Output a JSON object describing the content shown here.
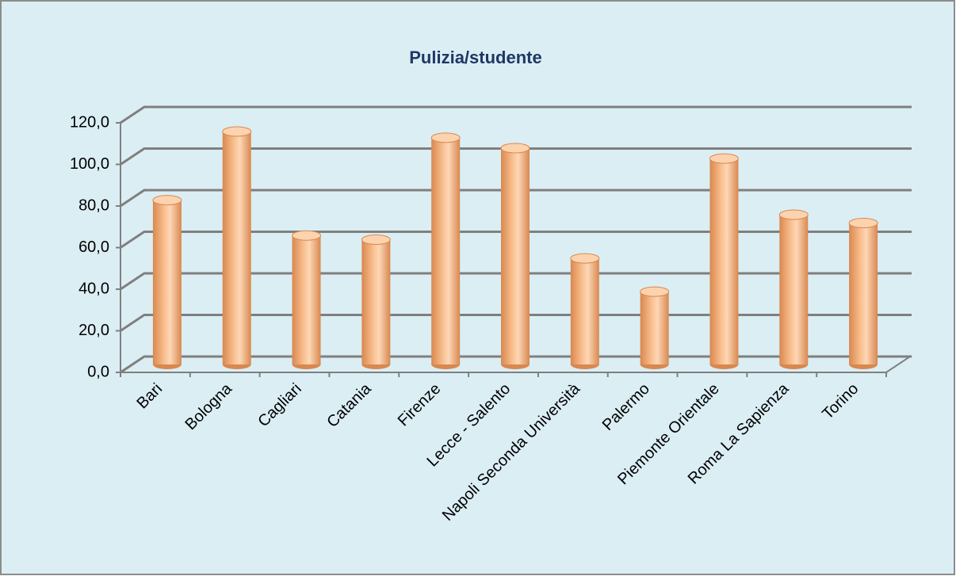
{
  "chart_data": {
    "type": "bar",
    "title": "Pulizia/studente",
    "categories": [
      "Bari",
      "Bologna",
      "Cagliari",
      "Catania",
      "Firenze",
      "Lecce - Salento",
      "Napoli Seconda Università",
      "Palermo",
      "Piemonte Orientale",
      "Roma La Sapienza",
      "Torino"
    ],
    "values": [
      79,
      112,
      62,
      60,
      109,
      104,
      51,
      35,
      99,
      72,
      68
    ],
    "color": "#f9bf8f",
    "ylim": [
      0,
      120
    ],
    "yticks": [
      {
        "value": 0,
        "label": "0,0"
      },
      {
        "value": 20,
        "label": "20,0"
      },
      {
        "value": 40,
        "label": "40,0"
      },
      {
        "value": 60,
        "label": "60,0"
      },
      {
        "value": 80,
        "label": "80,0"
      },
      {
        "value": 100,
        "label": "100,0"
      },
      {
        "value": 120,
        "label": "120,0"
      }
    ],
    "grid": true
  }
}
